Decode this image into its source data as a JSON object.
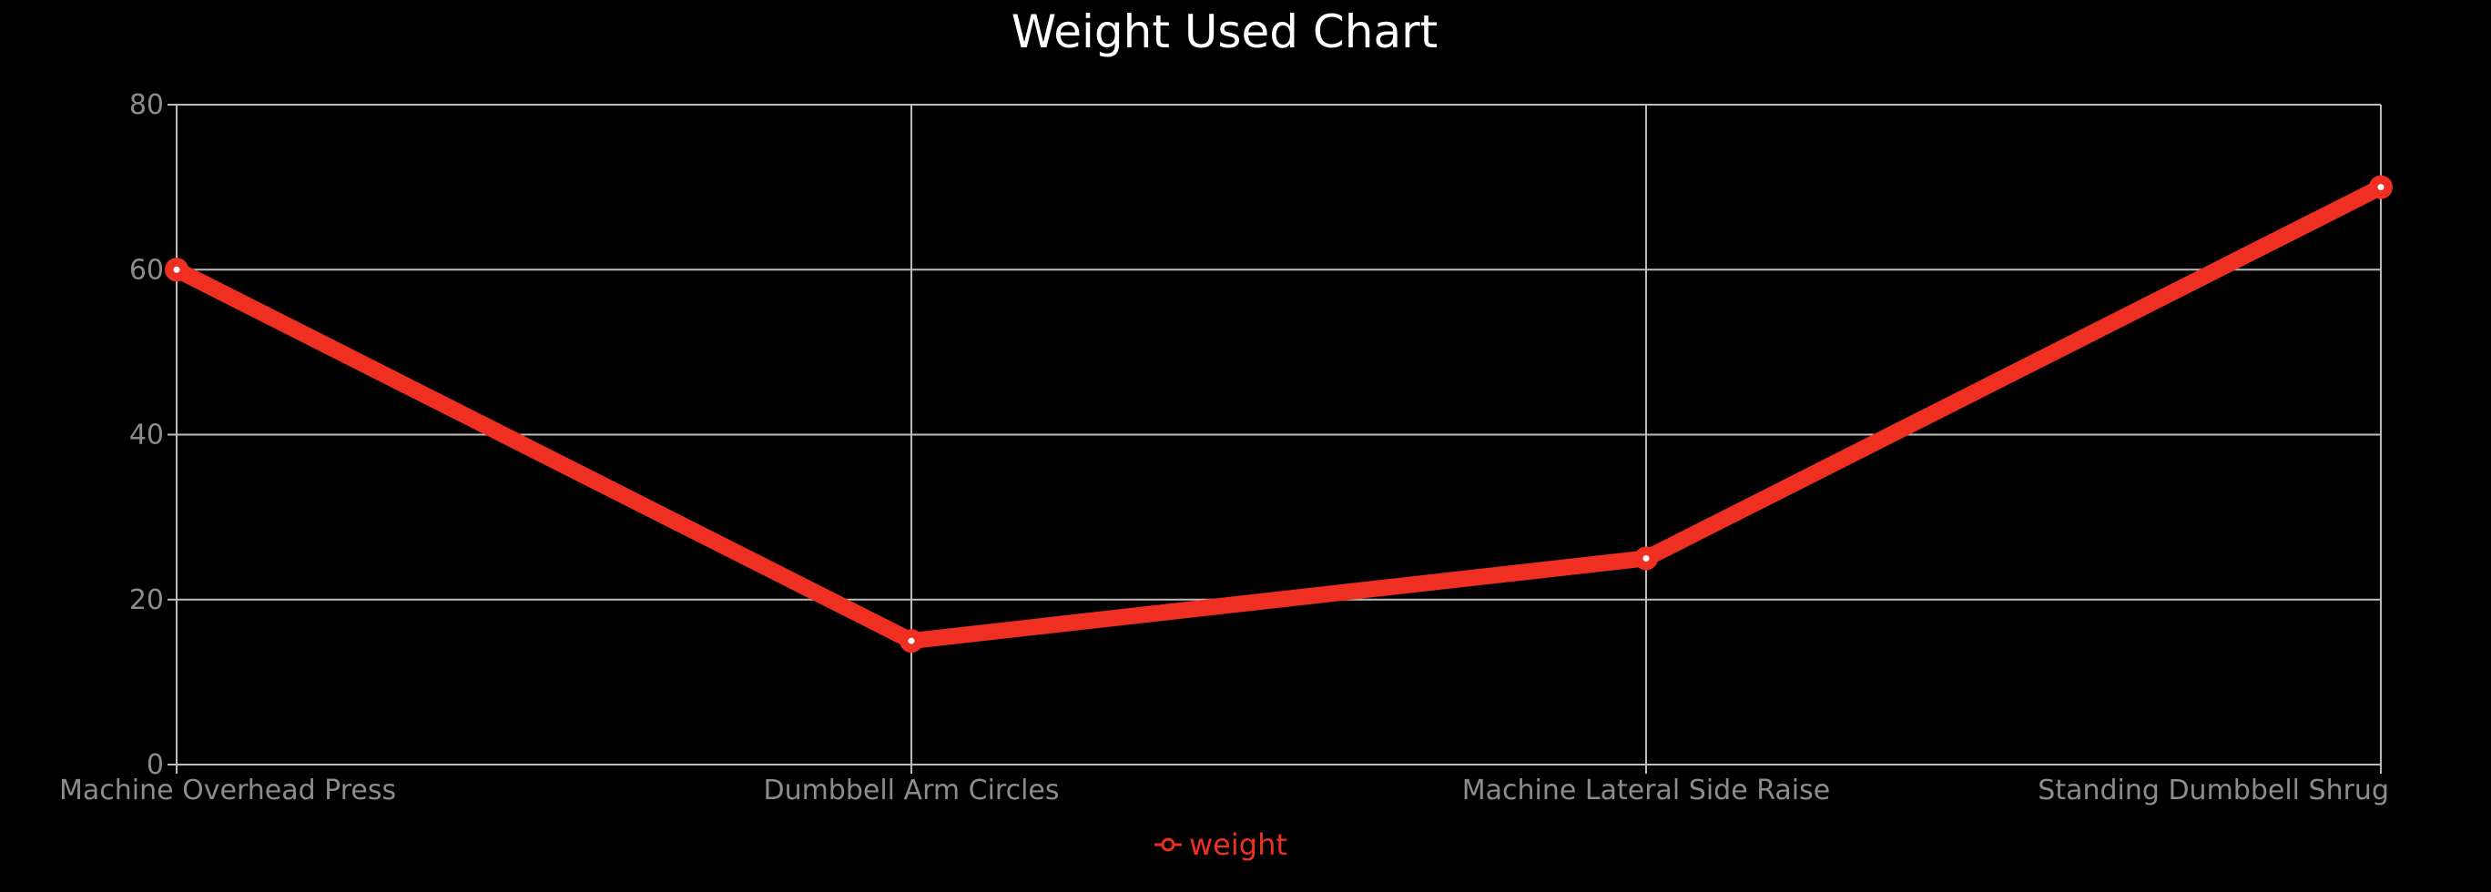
{
  "chart_data": {
    "type": "line",
    "title": "Weight Used Chart",
    "categories": [
      "Machine Overhead Press",
      "Dumbbell Arm Circles",
      "Machine Lateral Side Raise",
      "Standing Dumbbell Shrug"
    ],
    "series": [
      {
        "name": "weight",
        "values": [
          60,
          15,
          25,
          70
        ]
      }
    ],
    "y_ticks": [
      0,
      20,
      40,
      60,
      80
    ],
    "ylim": [
      0,
      80
    ],
    "xlabel": "",
    "ylabel": "",
    "grid": true,
    "legend_position": "bottom-center"
  },
  "colors": {
    "background": "#000000",
    "series": "#ee2f22",
    "grid": "#bdbdbd",
    "axis_text": "#8c8c8c",
    "title": "#ffffff"
  }
}
